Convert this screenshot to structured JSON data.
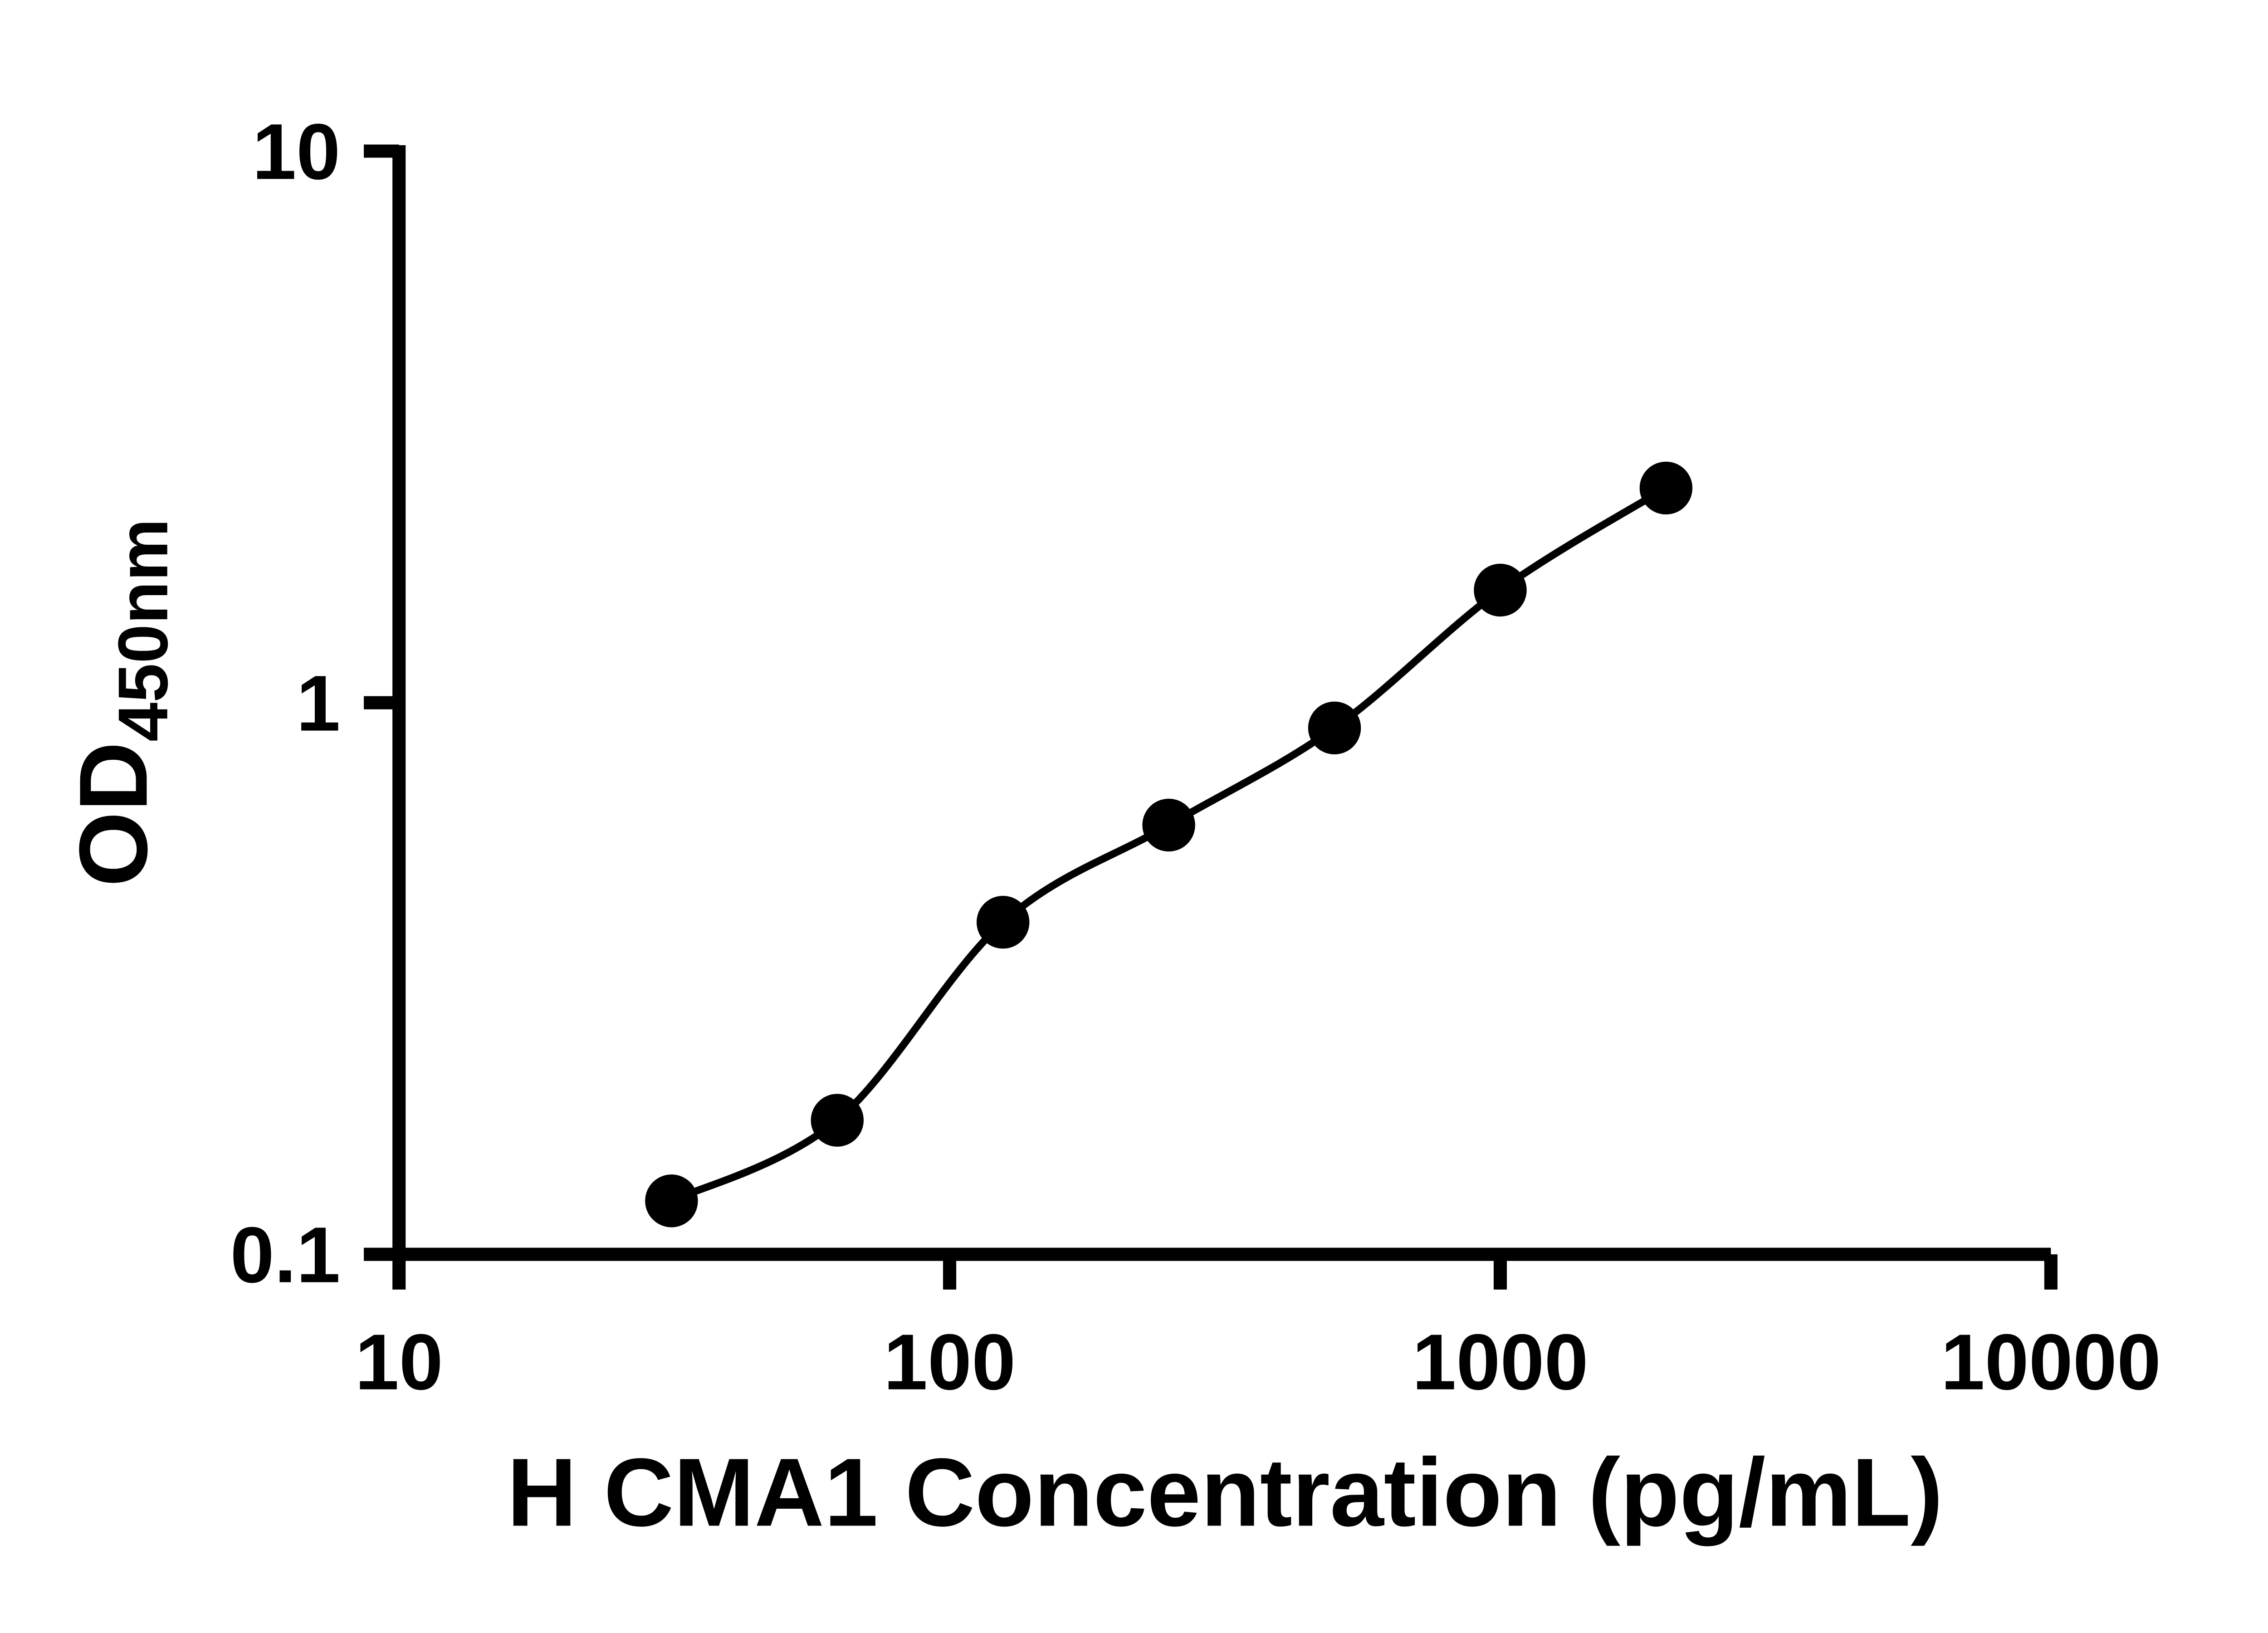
{
  "chart_data": {
    "type": "scatter",
    "title": "",
    "xlabel": "H CMA1 Concentration (pg/mL)",
    "ylabel_main": "OD",
    "ylabel_sub": "450nm",
    "x_scale": "log",
    "y_scale": "log",
    "xlim": [
      10,
      10000
    ],
    "ylim": [
      0.1,
      10
    ],
    "x_ticks": [
      10,
      100,
      1000,
      10000
    ],
    "x_tick_labels": [
      "10",
      "100",
      "1000",
      "10000"
    ],
    "y_ticks": [
      10,
      1,
      0.1
    ],
    "y_tick_labels": [
      "10",
      "1",
      "0.1"
    ],
    "points": [
      {
        "x": 31.25,
        "y": 0.125
      },
      {
        "x": 62.5,
        "y": 0.175
      },
      {
        "x": 125,
        "y": 0.4
      },
      {
        "x": 250,
        "y": 0.6
      },
      {
        "x": 500,
        "y": 0.9
      },
      {
        "x": 1000,
        "y": 1.6
      },
      {
        "x": 2000,
        "y": 2.45
      }
    ],
    "fit_line": true,
    "grid": false,
    "legend": "none",
    "marker_color": "#000000",
    "line_color": "#000000",
    "axis_color": "#000000",
    "background": "#ffffff"
  }
}
